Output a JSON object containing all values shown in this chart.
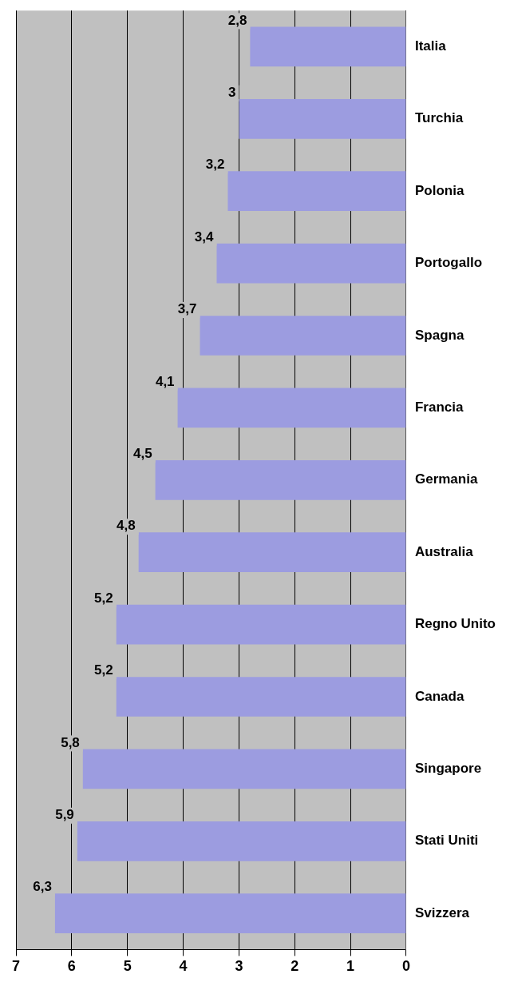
{
  "chart_data": {
    "type": "bar",
    "orientation": "horizontal",
    "categories": [
      "Italia",
      "Turchia",
      "Polonia",
      "Portogallo",
      "Spagna",
      "Francia",
      "Germania",
      "Australia",
      "Regno Unito",
      "Canada",
      "Singapore",
      "Stati Uniti",
      "Svizzera"
    ],
    "values": [
      2.8,
      3,
      3.2,
      3.4,
      3.7,
      4.1,
      4.5,
      4.8,
      5.2,
      5.2,
      5.8,
      5.9,
      6.3
    ],
    "value_labels": [
      "2,8",
      "3",
      "3,2",
      "3,4",
      "3,7",
      "4,1",
      "4,5",
      "4,8",
      "5,2",
      "5,2",
      "5,8",
      "5,9",
      "6,3"
    ],
    "color": "#9c9ce0",
    "xlim": [
      7,
      0
    ],
    "xticks": [
      7,
      6,
      5,
      4,
      3,
      2,
      1,
      0
    ],
    "grid": "x",
    "legend": false
  }
}
